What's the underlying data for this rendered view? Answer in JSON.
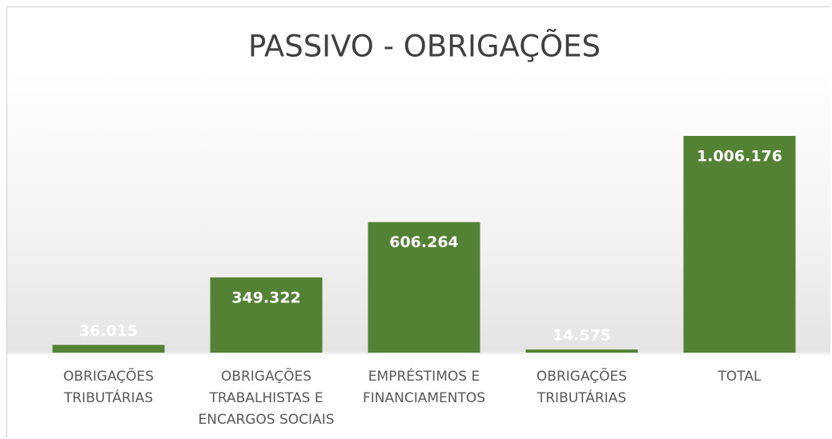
{
  "chart_data": {
    "type": "bar",
    "title": "PASSIVO - OBRIGAÇÕES",
    "categories": [
      "OBRIGAÇÕES TRIBUTÁRIAS",
      "OBRIGAÇÕES TRABALHISTAS E ENCARGOS SOCIAIS",
      "EMPRÉSTIMOS E FINANCIAMENTOS",
      "OBRIGAÇÕES TRIBUTÁRIAS",
      "TOTAL"
    ],
    "values": [
      36015,
      349322,
      606264,
      14575,
      1006176
    ],
    "value_labels": [
      "36.015",
      "349.322",
      "606.264",
      "14.575",
      "1.006.176"
    ],
    "color": "#548235"
  }
}
